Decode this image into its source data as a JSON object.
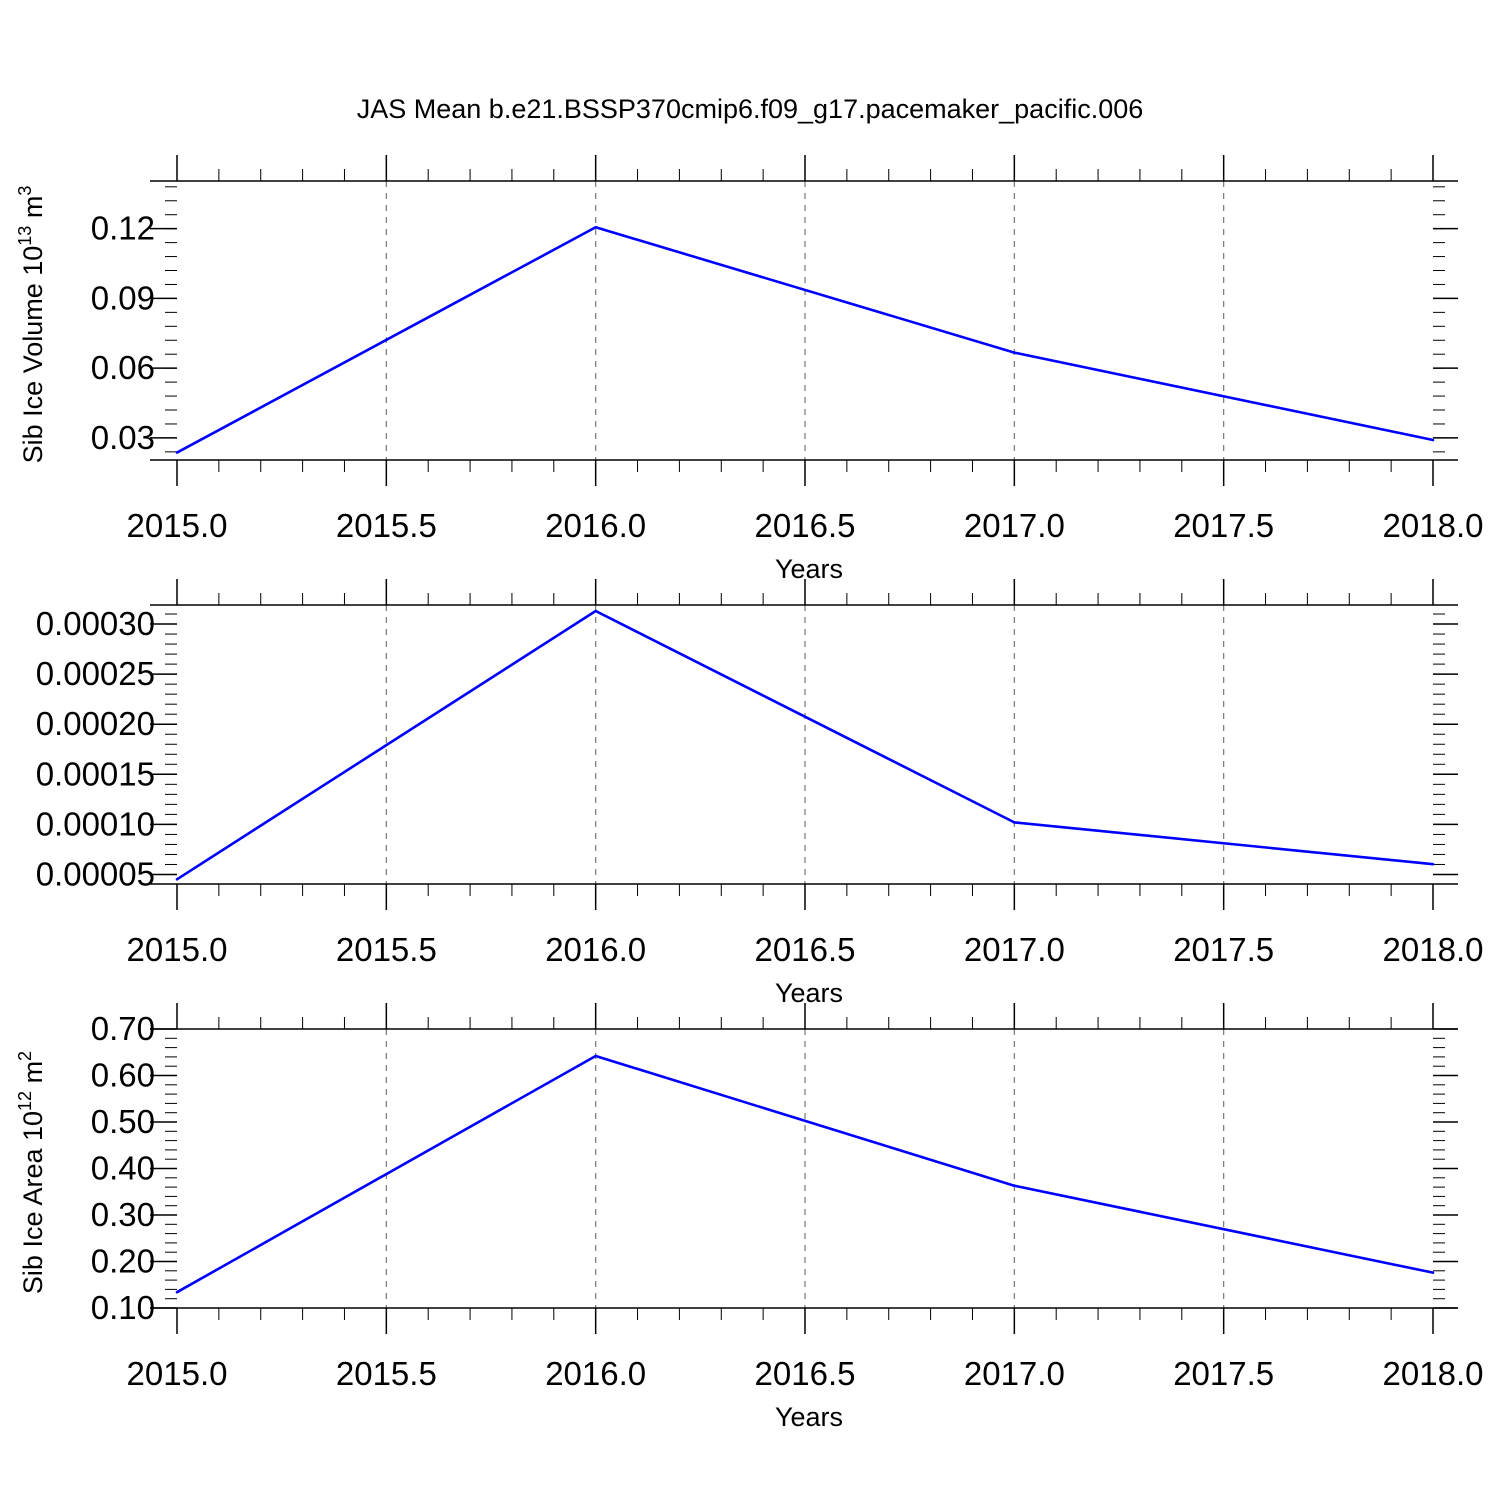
{
  "figure": {
    "title": "JAS Mean b.e21.BSSP370cmip6.f09_g17.pacemaker_pacific.006",
    "line_color": "#0000ff",
    "axis_color": "#000000",
    "grid_color": "#777777"
  },
  "chart_data": [
    {
      "type": "line",
      "xlabel": "Years",
      "ylabel": "Sib Ice Volume 10",
      "ylabel_exp": "13",
      "ylabel_unit": " m",
      "ylabel_unit_exp": "3",
      "xlim": [
        2015.0,
        2018.0
      ],
      "ylim": [
        0.0205,
        0.1405
      ],
      "x_ticks": [
        "2015.0",
        "2015.5",
        "2016.0",
        "2016.5",
        "2017.0",
        "2017.5",
        "2018.0"
      ],
      "y_ticks": [
        "0.03",
        "0.06",
        "0.09",
        "0.12"
      ],
      "grid": "vertical dashed",
      "series": [
        {
          "x": [
            2015,
            2016,
            2017,
            2018
          ],
          "y": [
            0.0237,
            0.1206,
            0.0667,
            0.0291
          ]
        }
      ]
    },
    {
      "type": "line",
      "xlabel": "Years",
      "ylabel": "",
      "xlim": [
        2015.0,
        2018.0
      ],
      "ylim": [
        4.05e-05,
        0.000319
      ],
      "x_ticks": [
        "2015.0",
        "2015.5",
        "2016.0",
        "2016.5",
        "2017.0",
        "2017.5",
        "2018.0"
      ],
      "y_ticks": [
        "0.00005",
        "0.00010",
        "0.00015",
        "0.00020",
        "0.00025",
        "0.00030"
      ],
      "grid": "vertical dashed",
      "series": [
        {
          "x": [
            2015,
            2016,
            2017,
            2018
          ],
          "y": [
            4.52e-05,
            0.000313,
            0.000102,
            6.03e-05
          ]
        }
      ]
    },
    {
      "type": "line",
      "xlabel": "Years",
      "ylabel": "Sib Ice Area 10",
      "ylabel_exp": "12",
      "ylabel_unit": " m",
      "ylabel_unit_exp": "2",
      "xlim": [
        2015.0,
        2018.0
      ],
      "ylim": [
        0.1,
        0.7
      ],
      "x_ticks": [
        "2015.0",
        "2015.5",
        "2016.0",
        "2016.5",
        "2017.0",
        "2017.5",
        "2018.0"
      ],
      "y_ticks": [
        "0.10",
        "0.20",
        "0.30",
        "0.40",
        "0.50",
        "0.60",
        "0.70"
      ],
      "grid": "vertical dashed",
      "series": [
        {
          "x": [
            2015,
            2016,
            2017,
            2018
          ],
          "y": [
            0.134,
            0.642,
            0.363,
            0.176
          ]
        }
      ]
    }
  ]
}
